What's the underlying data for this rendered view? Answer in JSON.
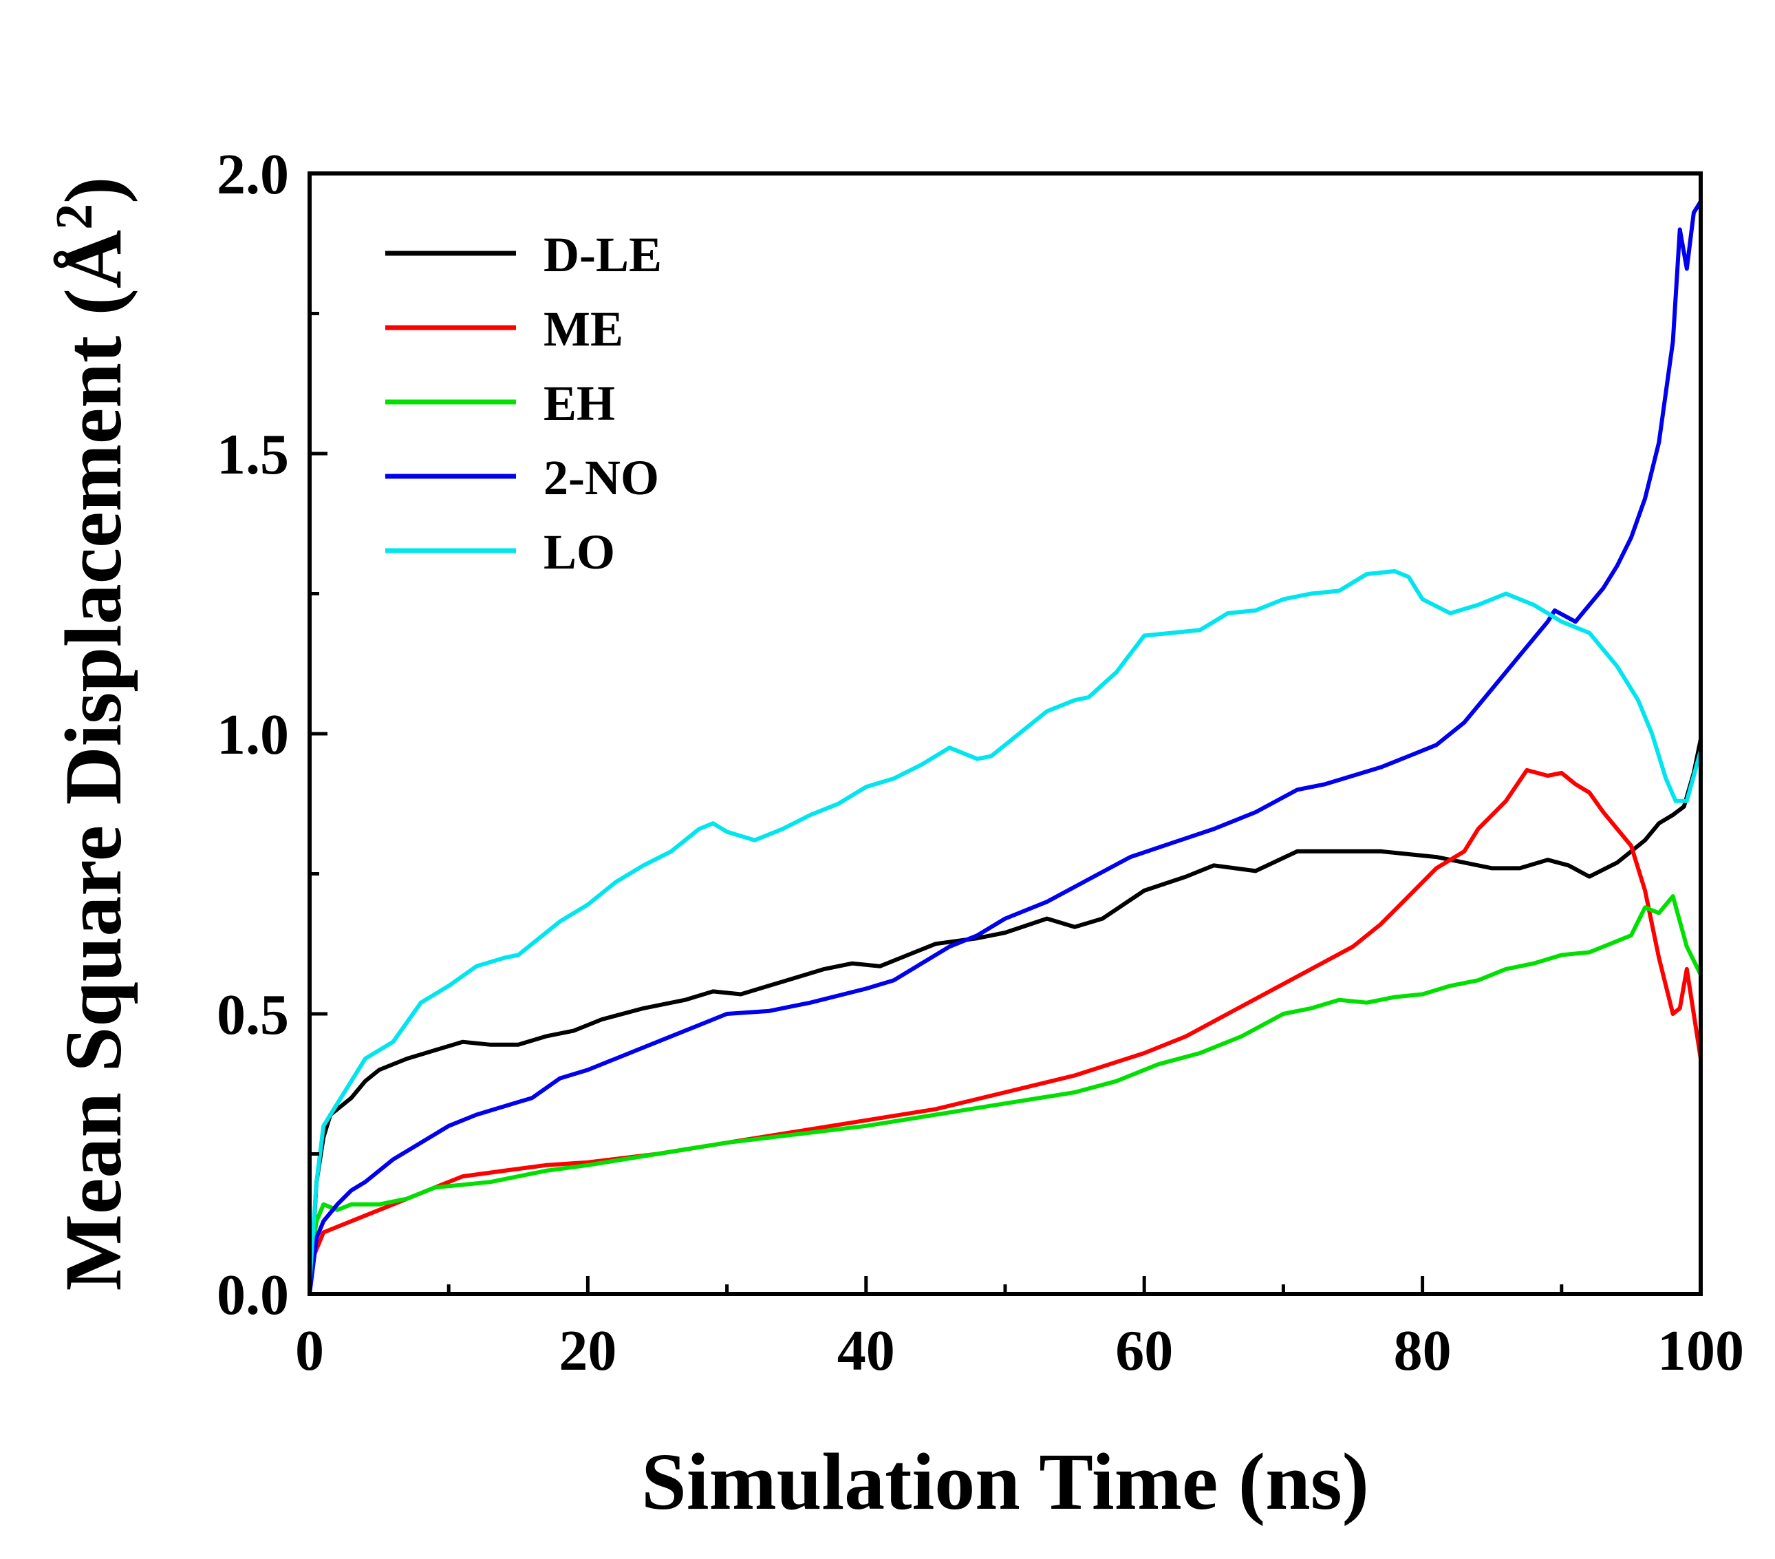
{
  "chart_data": {
    "type": "line",
    "title": "",
    "xlabel": "Simulation Time (ns)",
    "ylabel_main": "Mean Square Displacement (",
    "ylabel_unit": "Å",
    "ylabel_sup": "2",
    "ylabel_close": ")",
    "xlim": [
      0,
      100
    ],
    "ylim": [
      0,
      2.0
    ],
    "xticks": [
      0,
      20,
      40,
      60,
      80,
      100
    ],
    "xtick_labels": [
      "0",
      "20",
      "40",
      "60",
      "80",
      "100"
    ],
    "yticks": [
      0,
      0.5,
      1.0,
      1.5,
      2.0
    ],
    "ytick_labels": [
      "0.0",
      "0.5",
      "1.0",
      "1.5",
      "2.0"
    ],
    "grid": false,
    "legend_position": "top-left",
    "series": [
      {
        "name": "D-LE",
        "color": "#000000",
        "points": [
          [
            0,
            0
          ],
          [
            0.5,
            0.2
          ],
          [
            1,
            0.28
          ],
          [
            1.5,
            0.32
          ],
          [
            3,
            0.35
          ],
          [
            4,
            0.38
          ],
          [
            5,
            0.4
          ],
          [
            7,
            0.42
          ],
          [
            9,
            0.435
          ],
          [
            11,
            0.45
          ],
          [
            13,
            0.445
          ],
          [
            15,
            0.445
          ],
          [
            17,
            0.46
          ],
          [
            19,
            0.47
          ],
          [
            21,
            0.49
          ],
          [
            24,
            0.51
          ],
          [
            27,
            0.525
          ],
          [
            29,
            0.54
          ],
          [
            31,
            0.535
          ],
          [
            33,
            0.55
          ],
          [
            35,
            0.565
          ],
          [
            37,
            0.58
          ],
          [
            39,
            0.59
          ],
          [
            41,
            0.585
          ],
          [
            43,
            0.605
          ],
          [
            45,
            0.625
          ],
          [
            48,
            0.635
          ],
          [
            50,
            0.645
          ],
          [
            53,
            0.67
          ],
          [
            55,
            0.655
          ],
          [
            57,
            0.67
          ],
          [
            60,
            0.72
          ],
          [
            63,
            0.745
          ],
          [
            65,
            0.765
          ],
          [
            68,
            0.755
          ],
          [
            71,
            0.79
          ],
          [
            74,
            0.79
          ],
          [
            77,
            0.79
          ],
          [
            79,
            0.785
          ],
          [
            81,
            0.78
          ],
          [
            83,
            0.77
          ],
          [
            85,
            0.76
          ],
          [
            87,
            0.76
          ],
          [
            89,
            0.775
          ],
          [
            90.5,
            0.765
          ],
          [
            92,
            0.745
          ],
          [
            94,
            0.77
          ],
          [
            96,
            0.81
          ],
          [
            97,
            0.84
          ],
          [
            98,
            0.855
          ],
          [
            98.8,
            0.87
          ],
          [
            99.5,
            0.93
          ],
          [
            100,
            0.99
          ]
        ]
      },
      {
        "name": "ME",
        "color": "#ff0000",
        "points": [
          [
            0,
            0.05
          ],
          [
            1,
            0.11
          ],
          [
            3,
            0.13
          ],
          [
            6,
            0.16
          ],
          [
            9,
            0.19
          ],
          [
            11,
            0.21
          ],
          [
            14,
            0.22
          ],
          [
            17,
            0.23
          ],
          [
            20,
            0.235
          ],
          [
            25,
            0.25
          ],
          [
            30,
            0.27
          ],
          [
            35,
            0.29
          ],
          [
            40,
            0.31
          ],
          [
            45,
            0.33
          ],
          [
            50,
            0.36
          ],
          [
            55,
            0.39
          ],
          [
            60,
            0.43
          ],
          [
            63,
            0.46
          ],
          [
            66,
            0.5
          ],
          [
            69,
            0.54
          ],
          [
            72,
            0.58
          ],
          [
            75,
            0.62
          ],
          [
            77,
            0.66
          ],
          [
            79,
            0.71
          ],
          [
            81,
            0.76
          ],
          [
            83,
            0.79
          ],
          [
            84,
            0.83
          ],
          [
            86,
            0.88
          ],
          [
            87.5,
            0.935
          ],
          [
            89,
            0.925
          ],
          [
            90,
            0.93
          ],
          [
            91,
            0.91
          ],
          [
            92,
            0.895
          ],
          [
            93,
            0.86
          ],
          [
            94,
            0.83
          ],
          [
            95,
            0.8
          ],
          [
            96,
            0.72
          ],
          [
            97,
            0.6
          ],
          [
            98,
            0.5
          ],
          [
            98.5,
            0.51
          ],
          [
            99,
            0.58
          ],
          [
            99.5,
            0.5
          ],
          [
            100,
            0.42
          ]
        ]
      },
      {
        "name": "EH",
        "color": "#00e000",
        "points": [
          [
            0,
            0.05
          ],
          [
            0.5,
            0.13
          ],
          [
            1,
            0.16
          ],
          [
            2,
            0.15
          ],
          [
            3,
            0.16
          ],
          [
            5,
            0.16
          ],
          [
            7,
            0.17
          ],
          [
            9,
            0.19
          ],
          [
            11,
            0.195
          ],
          [
            13,
            0.2
          ],
          [
            15,
            0.21
          ],
          [
            17,
            0.22
          ],
          [
            20,
            0.23
          ],
          [
            25,
            0.25
          ],
          [
            30,
            0.27
          ],
          [
            35,
            0.285
          ],
          [
            40,
            0.3
          ],
          [
            45,
            0.32
          ],
          [
            50,
            0.34
          ],
          [
            55,
            0.36
          ],
          [
            58,
            0.38
          ],
          [
            61,
            0.41
          ],
          [
            64,
            0.43
          ],
          [
            67,
            0.46
          ],
          [
            70,
            0.5
          ],
          [
            72,
            0.51
          ],
          [
            74,
            0.525
          ],
          [
            76,
            0.52
          ],
          [
            78,
            0.53
          ],
          [
            80,
            0.535
          ],
          [
            82,
            0.55
          ],
          [
            84,
            0.56
          ],
          [
            86,
            0.58
          ],
          [
            88,
            0.59
          ],
          [
            90,
            0.605
          ],
          [
            92,
            0.61
          ],
          [
            94,
            0.63
          ],
          [
            95,
            0.64
          ],
          [
            96,
            0.69
          ],
          [
            97,
            0.68
          ],
          [
            98,
            0.71
          ],
          [
            99,
            0.62
          ],
          [
            100,
            0.57
          ]
        ]
      },
      {
        "name": "2-NO",
        "color": "#0000ee",
        "points": [
          [
            0,
            0
          ],
          [
            0.5,
            0.1
          ],
          [
            1,
            0.13
          ],
          [
            2,
            0.16
          ],
          [
            3,
            0.185
          ],
          [
            4,
            0.2
          ],
          [
            6,
            0.24
          ],
          [
            8,
            0.27
          ],
          [
            10,
            0.3
          ],
          [
            12,
            0.32
          ],
          [
            14,
            0.335
          ],
          [
            16,
            0.35
          ],
          [
            18,
            0.385
          ],
          [
            20,
            0.4
          ],
          [
            22,
            0.42
          ],
          [
            25,
            0.45
          ],
          [
            28,
            0.48
          ],
          [
            30,
            0.5
          ],
          [
            33,
            0.505
          ],
          [
            36,
            0.52
          ],
          [
            40,
            0.545
          ],
          [
            42,
            0.56
          ],
          [
            44,
            0.59
          ],
          [
            46,
            0.62
          ],
          [
            48,
            0.64
          ],
          [
            50,
            0.67
          ],
          [
            53,
            0.7
          ],
          [
            56,
            0.74
          ],
          [
            59,
            0.78
          ],
          [
            62,
            0.805
          ],
          [
            65,
            0.83
          ],
          [
            68,
            0.86
          ],
          [
            71,
            0.9
          ],
          [
            73,
            0.91
          ],
          [
            75,
            0.925
          ],
          [
            77,
            0.94
          ],
          [
            79,
            0.96
          ],
          [
            81,
            0.98
          ],
          [
            83,
            1.02
          ],
          [
            85,
            1.08
          ],
          [
            87,
            1.14
          ],
          [
            89,
            1.2
          ],
          [
            89.5,
            1.22
          ],
          [
            91,
            1.2
          ],
          [
            92,
            1.23
          ],
          [
            93,
            1.26
          ],
          [
            94,
            1.3
          ],
          [
            95,
            1.35
          ],
          [
            96,
            1.42
          ],
          [
            97,
            1.52
          ],
          [
            98,
            1.7
          ],
          [
            98.5,
            1.9
          ],
          [
            99,
            1.83
          ],
          [
            99.5,
            1.93
          ],
          [
            100,
            1.95
          ]
        ]
      },
      {
        "name": "LO",
        "color": "#00e5ee",
        "points": [
          [
            0,
            0.02
          ],
          [
            0.5,
            0.2
          ],
          [
            1,
            0.3
          ],
          [
            2,
            0.34
          ],
          [
            3,
            0.38
          ],
          [
            4,
            0.42
          ],
          [
            6,
            0.45
          ],
          [
            8,
            0.52
          ],
          [
            10,
            0.55
          ],
          [
            12,
            0.585
          ],
          [
            14,
            0.6
          ],
          [
            15,
            0.605
          ],
          [
            18,
            0.665
          ],
          [
            20,
            0.695
          ],
          [
            22,
            0.735
          ],
          [
            24,
            0.765
          ],
          [
            26,
            0.79
          ],
          [
            28,
            0.83
          ],
          [
            29,
            0.84
          ],
          [
            30,
            0.825
          ],
          [
            32,
            0.81
          ],
          [
            34,
            0.83
          ],
          [
            36,
            0.855
          ],
          [
            38,
            0.875
          ],
          [
            40,
            0.905
          ],
          [
            42,
            0.92
          ],
          [
            44,
            0.945
          ],
          [
            46,
            0.975
          ],
          [
            48,
            0.955
          ],
          [
            49,
            0.96
          ],
          [
            51,
            1.0
          ],
          [
            53,
            1.04
          ],
          [
            55,
            1.06
          ],
          [
            56,
            1.065
          ],
          [
            58,
            1.11
          ],
          [
            60,
            1.175
          ],
          [
            62,
            1.18
          ],
          [
            64,
            1.185
          ],
          [
            66,
            1.215
          ],
          [
            68,
            1.22
          ],
          [
            70,
            1.24
          ],
          [
            72,
            1.25
          ],
          [
            74,
            1.255
          ],
          [
            76,
            1.285
          ],
          [
            78,
            1.29
          ],
          [
            79,
            1.28
          ],
          [
            80,
            1.24
          ],
          [
            82,
            1.215
          ],
          [
            84,
            1.23
          ],
          [
            86,
            1.25
          ],
          [
            88,
            1.23
          ],
          [
            90,
            1.2
          ],
          [
            92,
            1.18
          ],
          [
            94,
            1.12
          ],
          [
            95.5,
            1.06
          ],
          [
            96.5,
            1.0
          ],
          [
            97.5,
            0.92
          ],
          [
            98.2,
            0.88
          ],
          [
            99,
            0.88
          ],
          [
            100,
            0.97
          ]
        ]
      }
    ]
  }
}
